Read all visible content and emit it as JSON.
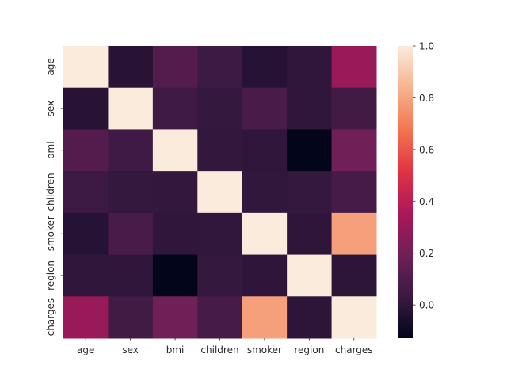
{
  "chart_data": {
    "type": "heatmap",
    "title": "",
    "xlabel": "",
    "ylabel": "",
    "x_labels": [
      "age",
      "sex",
      "bmi",
      "children",
      "smoker",
      "region",
      "charges"
    ],
    "y_labels": [
      "age",
      "sex",
      "bmi",
      "children",
      "smoker",
      "region",
      "charges"
    ],
    "values": [
      [
        1.0,
        -0.021,
        0.109,
        0.042,
        -0.025,
        0.002,
        0.299
      ],
      [
        -0.021,
        1.0,
        0.046,
        0.017,
        0.076,
        0.005,
        0.057
      ],
      [
        0.109,
        0.046,
        1.0,
        0.013,
        0.004,
        -0.128,
        0.198
      ],
      [
        0.042,
        0.017,
        0.013,
        1.0,
        0.008,
        0.017,
        0.068
      ],
      [
        -0.025,
        0.076,
        0.004,
        0.008,
        1.0,
        -0.002,
        0.787
      ],
      [
        0.002,
        0.005,
        -0.128,
        0.017,
        -0.002,
        1.0,
        -0.006
      ],
      [
        0.299,
        0.057,
        0.198,
        0.068,
        0.787,
        -0.006,
        1.0
      ]
    ],
    "colorbar": {
      "vmin": -0.128,
      "vmax": 1.0,
      "ticks": [
        0.0,
        0.2,
        0.4,
        0.6,
        0.8,
        1.0
      ],
      "tick_labels": [
        "0.0",
        "0.2",
        "0.4",
        "0.6",
        "0.8",
        "1.0"
      ],
      "colormap": "rocket",
      "colormap_stops": [
        "#03051a",
        "#3a1a42",
        "#701f57",
        "#ad1759",
        "#e13342",
        "#f37651",
        "#f6b48f",
        "#faebdd"
      ]
    }
  }
}
